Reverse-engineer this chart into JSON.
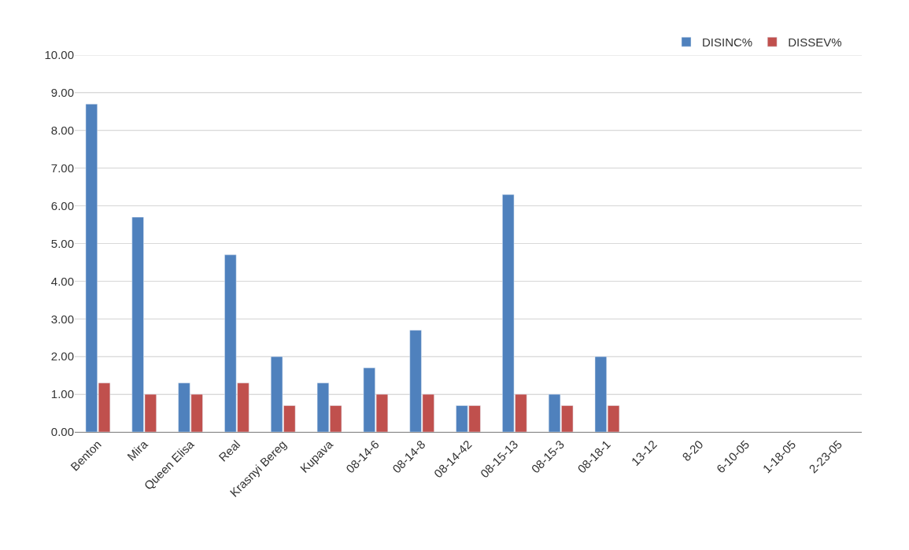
{
  "chart_data": {
    "type": "bar",
    "categories": [
      "Benton",
      "Mira",
      "Queen Elisa",
      "Real",
      "Krasnyi Bereg",
      "Kupava",
      "08-14-6",
      "08-14-8",
      "08-14-42",
      "08-15-13",
      "08-15-3",
      "08-18-1",
      "13-12",
      "8-20",
      "6-10-05",
      "1-18-05",
      "2-23-05"
    ],
    "series": [
      {
        "name": "DISINC%",
        "color": "#4f81bd",
        "values": [
          8.7,
          5.7,
          1.3,
          4.7,
          2.0,
          1.3,
          1.7,
          2.7,
          0.7,
          6.3,
          1.0,
          2.0,
          null,
          null,
          null,
          null,
          null
        ]
      },
      {
        "name": "DISSEV%",
        "color": "#c0504d",
        "values": [
          1.3,
          1.0,
          1.0,
          1.3,
          0.7,
          0.7,
          1.0,
          1.0,
          0.7,
          1.0,
          0.7,
          0.7,
          null,
          null,
          null,
          null,
          null
        ]
      }
    ],
    "ylim": [
      0,
      10
    ],
    "yticks": [
      {
        "value": 0,
        "label": "0.00"
      },
      {
        "value": 1,
        "label": "1.00"
      },
      {
        "value": 2,
        "label": "2.00"
      },
      {
        "value": 3,
        "label": "3.00"
      },
      {
        "value": 4,
        "label": "4.00"
      },
      {
        "value": 5,
        "label": "5.00"
      },
      {
        "value": 6,
        "label": "6.00"
      },
      {
        "value": 7,
        "label": "7.00"
      },
      {
        "value": 8,
        "label": "8.00"
      },
      {
        "value": 9,
        "label": "9.00"
      },
      {
        "value": 10,
        "label": "10.00"
      }
    ],
    "grid": "y",
    "legend": "top right"
  }
}
